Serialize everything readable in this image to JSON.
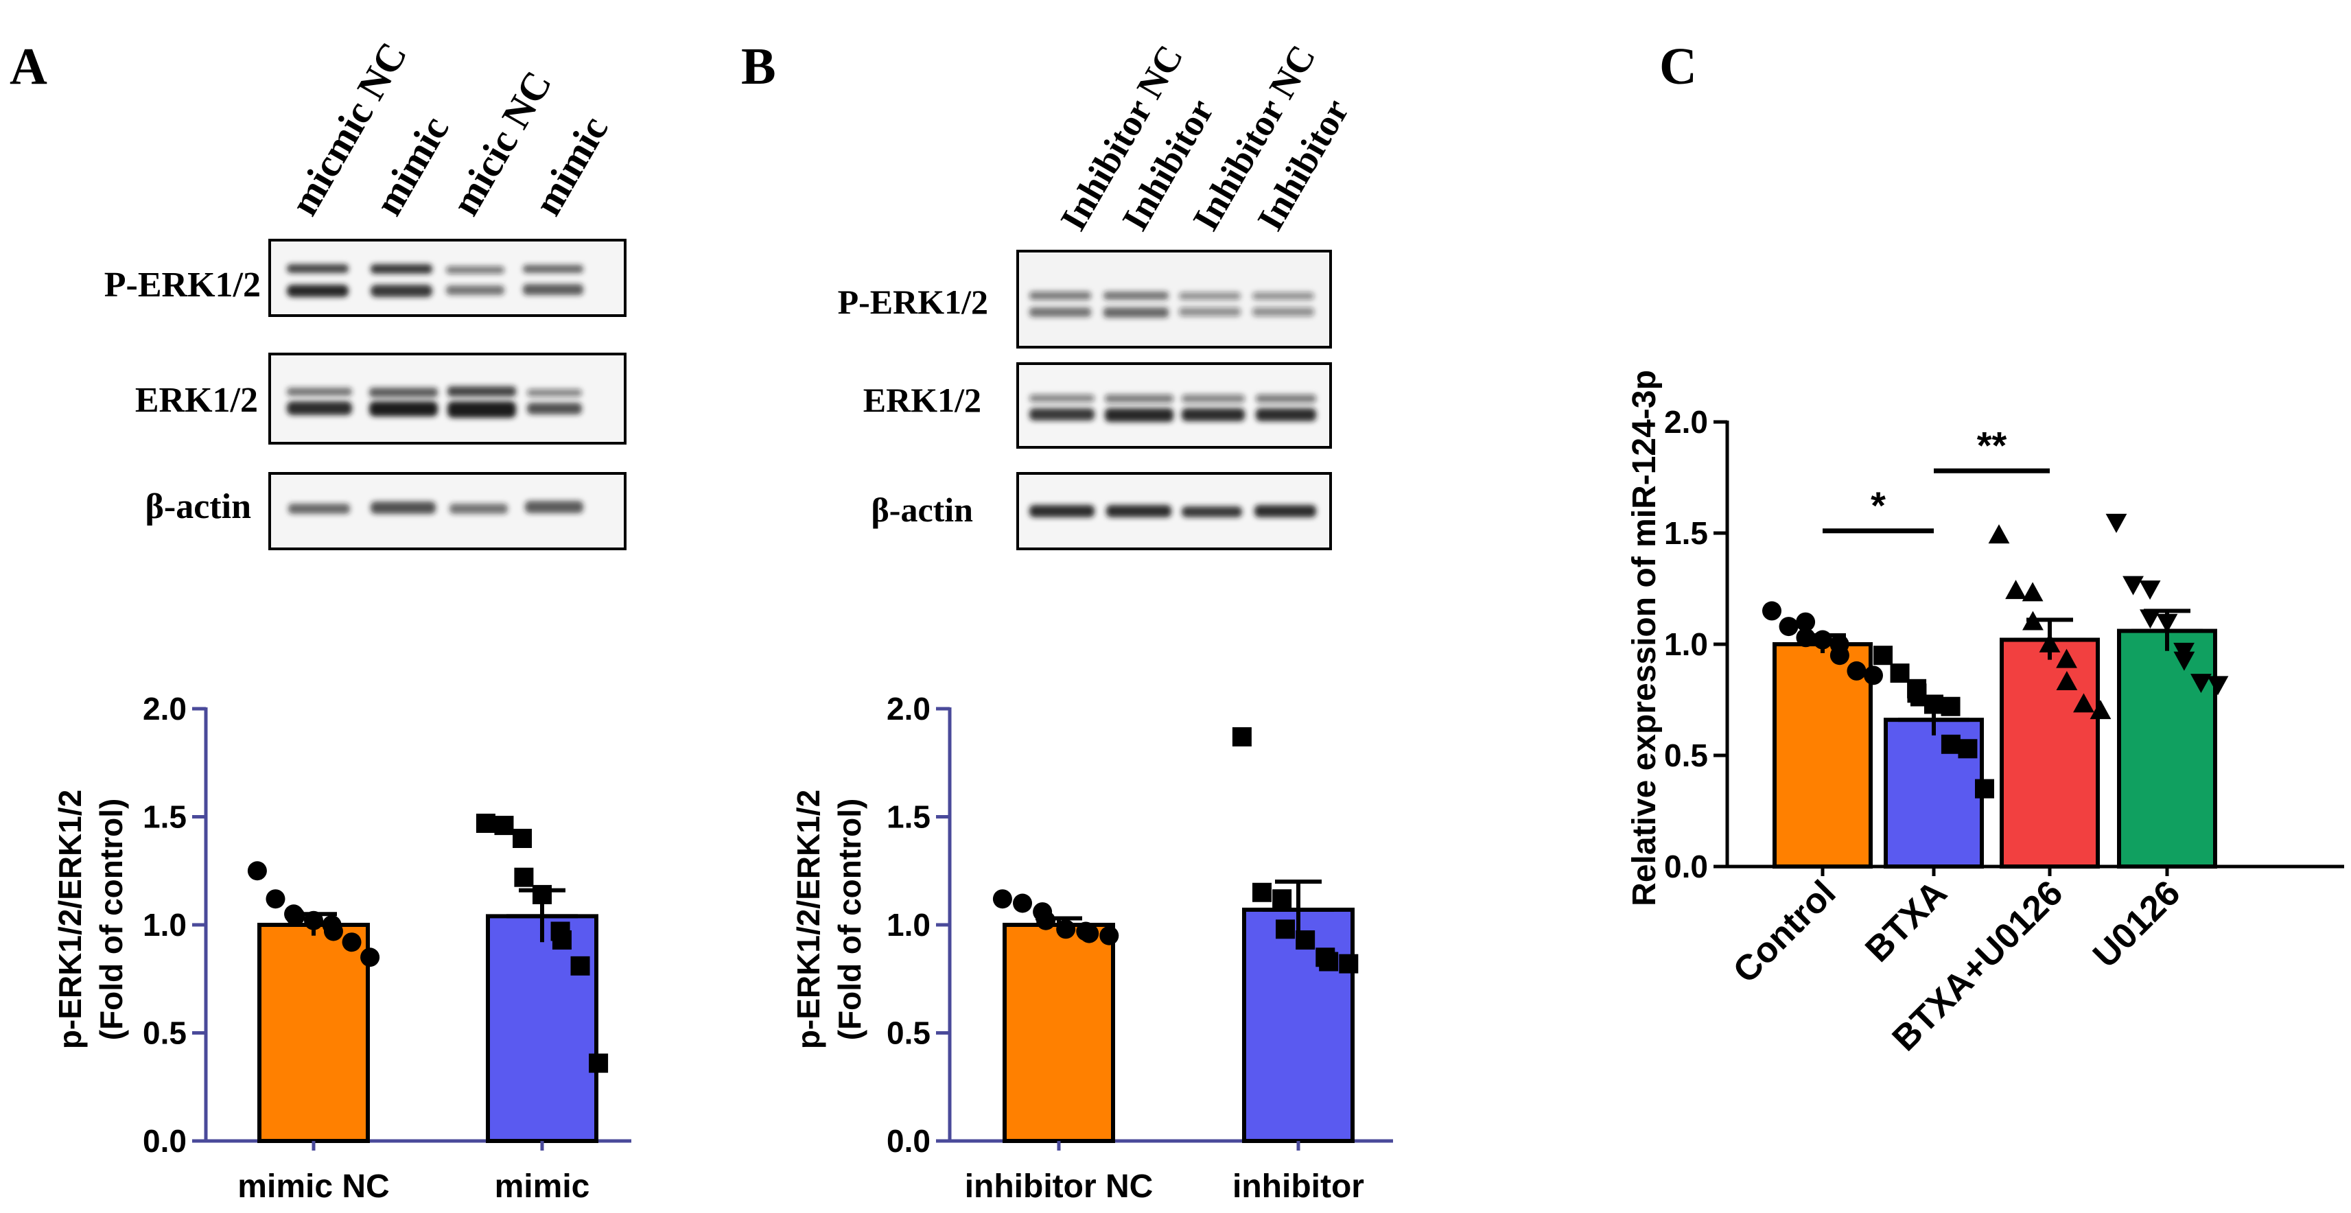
{
  "panels": {
    "A": {
      "label": "A",
      "blot_lanes": [
        "micmic NC",
        "mimic",
        "micic NC",
        "mimic"
      ],
      "blot_rows": [
        "P-ERK1/2",
        "ERK1/2",
        "β-actin"
      ]
    },
    "B": {
      "label": "B",
      "blot_lanes": [
        "Inhibitor NC",
        "Inhibitor",
        "Inhibitor NC",
        "Inhibitor"
      ],
      "blot_rows": [
        "P-ERK1/2",
        "ERK1/2",
        "β-actin"
      ]
    },
    "C": {
      "label": "C"
    }
  },
  "colors": {
    "orange": "#FF8000",
    "blue": "#5A5AF0",
    "red": "#F24040",
    "green": "#10A060",
    "axis": "#4A4A9A"
  },
  "chart_data": [
    {
      "id": "A",
      "type": "bar",
      "categories": [
        "mimic NC",
        "mimic"
      ],
      "values": [
        1.0,
        1.04
      ],
      "sem": [
        0.05,
        0.12
      ],
      "points": [
        [
          1.25,
          1.12,
          1.05,
          1.04,
          1.02,
          1.0,
          0.97,
          0.92,
          0.85
        ],
        [
          1.47,
          1.46,
          1.4,
          1.22,
          1.14,
          0.97,
          0.93,
          0.81,
          0.36
        ]
      ],
      "markers": [
        "circle",
        "square"
      ],
      "ylabel": [
        "p-ERK1/2/ERK1/2",
        "(Fold of control)"
      ],
      "ylim": [
        0,
        2.0
      ],
      "yticks": [
        "0.0",
        "0.5",
        "1.0",
        "1.5",
        "2.0"
      ],
      "colors": [
        "#FF8000",
        "#5A5AF0"
      ]
    },
    {
      "id": "B",
      "type": "bar",
      "categories": [
        "inhibitor NC",
        "inhibitor"
      ],
      "values": [
        1.0,
        1.07
      ],
      "sem": [
        0.03,
        0.13
      ],
      "points": [
        [
          1.12,
          1.1,
          1.06,
          1.02,
          0.98,
          0.97,
          0.96,
          0.95
        ],
        [
          1.87,
          1.15,
          1.12,
          0.98,
          0.93,
          0.85,
          0.83,
          0.82
        ]
      ],
      "markers": [
        "circle",
        "square"
      ],
      "ylabel": [
        "p-ERK1/2/ERK1/2",
        "(Fold of control)"
      ],
      "ylim": [
        0,
        2.0
      ],
      "yticks": [
        "0.0",
        "0.5",
        "1.0",
        "1.5",
        "2.0"
      ],
      "colors": [
        "#FF8000",
        "#5A5AF0"
      ]
    },
    {
      "id": "C",
      "type": "bar",
      "categories": [
        "Control",
        "BTXA",
        "BTXA+U0126",
        "U0126"
      ],
      "values": [
        1.0,
        0.66,
        1.02,
        1.06
      ],
      "sem": [
        0.04,
        0.07,
        0.09,
        0.09
      ],
      "points": [
        [
          1.15,
          1.08,
          1.1,
          1.03,
          1.02,
          1.0,
          0.95,
          0.88,
          0.86
        ],
        [
          0.95,
          0.87,
          0.8,
          0.78,
          0.73,
          0.72,
          0.55,
          0.53,
          0.35
        ],
        [
          1.49,
          1.24,
          1.23,
          1.1,
          1.0,
          0.93,
          0.83,
          0.73,
          0.7
        ],
        [
          1.55,
          1.27,
          1.25,
          1.12,
          1.1,
          0.97,
          0.93,
          0.83,
          0.82
        ]
      ],
      "markers": [
        "circle",
        "square",
        "triangle-up",
        "triangle-down"
      ],
      "ylabel": [
        "Relative expression of miR-124-3p"
      ],
      "ylim": [
        0,
        2.0
      ],
      "yticks": [
        "0.0",
        "0.5",
        "1.0",
        "1.5",
        "2.0"
      ],
      "colors": [
        "#FF8000",
        "#5A5AF0",
        "#F24040",
        "#10A060"
      ],
      "significance": [
        {
          "from": 0,
          "to": 1,
          "y": 1.51,
          "label": "*"
        },
        {
          "from": 1,
          "to": 2,
          "y": 1.78,
          "label": "**"
        }
      ]
    }
  ]
}
